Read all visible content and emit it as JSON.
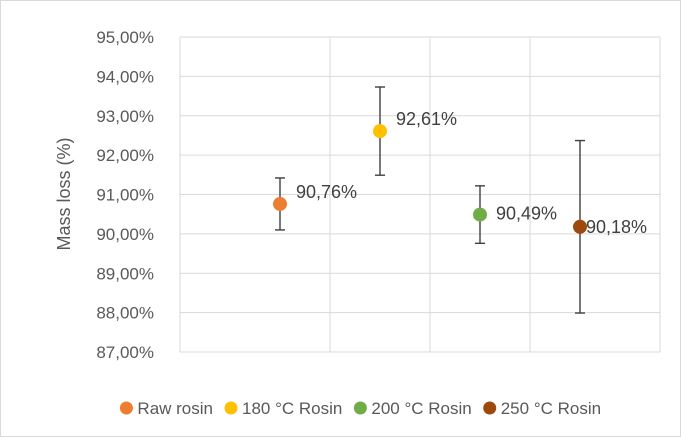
{
  "chart_data": {
    "type": "scatter",
    "ylabel": "Mass loss (%)",
    "ylim": [
      87,
      95
    ],
    "y_ticks": [
      87,
      88,
      89,
      90,
      91,
      92,
      93,
      94,
      95
    ],
    "y_tick_labels": [
      "87,00%",
      "88,00%",
      "89,00%",
      "90,00%",
      "91,00%",
      "92,00%",
      "93,00%",
      "94,00%",
      "95,00%"
    ],
    "x_positions": [
      1,
      2,
      3,
      4
    ],
    "xlim": [
      0,
      4.8
    ],
    "x_gridlines": [
      1.5,
      2.5,
      3.5
    ],
    "grid": true,
    "legend_position": "bottom",
    "series": [
      {
        "name": "Raw rosin",
        "x": 1,
        "y": 90.76,
        "err_low": 90.1,
        "err_high": 91.42,
        "label": "90,76%",
        "color": "#ED7D31"
      },
      {
        "name": "180 °C Rosin",
        "x": 2,
        "y": 92.61,
        "err_low": 91.49,
        "err_high": 93.73,
        "label": "92,61%",
        "color": "#FFC000"
      },
      {
        "name": "200 °C Rosin",
        "x": 3,
        "y": 90.49,
        "err_low": 89.76,
        "err_high": 91.22,
        "label": "90,49%",
        "color": "#70AD47"
      },
      {
        "name": "250 °C Rosin",
        "x": 4,
        "y": 90.18,
        "err_low": 87.99,
        "err_high": 92.37,
        "label": "90,18%",
        "color": "#9E480E"
      }
    ]
  }
}
